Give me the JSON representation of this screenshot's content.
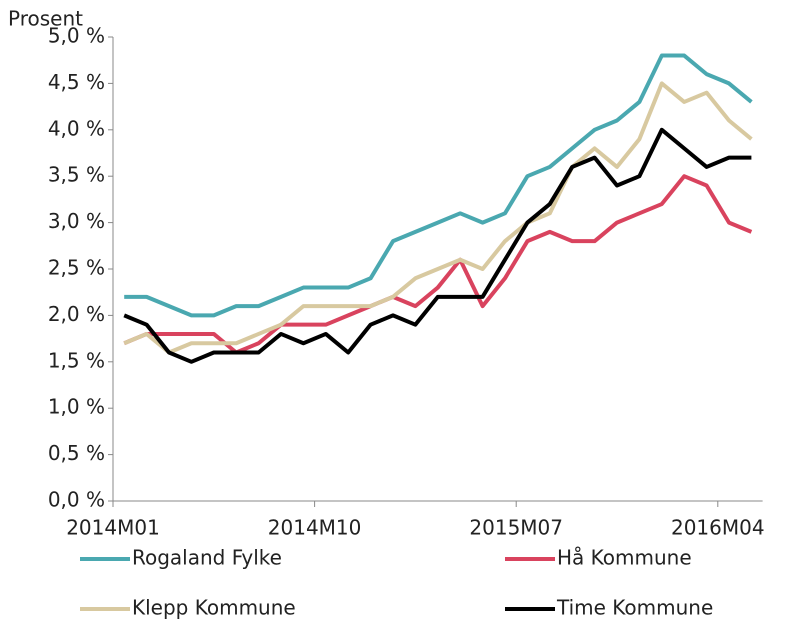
{
  "chart_data": {
    "type": "line",
    "y_axis_label": "Prosent",
    "categories": [
      "2014M01",
      null,
      null,
      null,
      null,
      null,
      null,
      null,
      null,
      "2014M10",
      null,
      null,
      null,
      null,
      null,
      null,
      null,
      null,
      "2015M07",
      null,
      null,
      null,
      null,
      null,
      null,
      null,
      null,
      "2016M04",
      null
    ],
    "series": [
      {
        "name": "Rogaland Fylke",
        "color": "#4aa8b0",
        "values": [
          2.2,
          2.2,
          2.1,
          2.0,
          2.0,
          2.1,
          2.1,
          2.2,
          2.3,
          2.3,
          2.3,
          2.4,
          2.8,
          2.9,
          3.0,
          3.1,
          3.0,
          3.1,
          3.5,
          3.6,
          3.8,
          4.0,
          4.1,
          4.3,
          4.8,
          4.8,
          4.6,
          4.5,
          4.3
        ]
      },
      {
        "name": "Hå Kommune",
        "color": "#d9435e",
        "values": [
          1.7,
          1.8,
          1.8,
          1.8,
          1.8,
          1.6,
          1.7,
          1.9,
          1.9,
          1.9,
          2.0,
          2.1,
          2.2,
          2.1,
          2.3,
          2.6,
          2.1,
          2.4,
          2.8,
          2.9,
          2.8,
          2.8,
          3.0,
          3.1,
          3.2,
          3.5,
          3.4,
          3.0,
          2.9
        ]
      },
      {
        "name": "Klepp Kommune",
        "color": "#d8c9a0",
        "values": [
          1.7,
          1.8,
          1.6,
          1.7,
          1.7,
          1.7,
          1.8,
          1.9,
          2.1,
          2.1,
          2.1,
          2.1,
          2.2,
          2.4,
          2.5,
          2.6,
          2.5,
          2.8,
          3.0,
          3.1,
          3.6,
          3.8,
          3.6,
          3.9,
          4.5,
          4.3,
          4.4,
          4.1,
          3.9
        ]
      },
      {
        "name": "Time Kommune",
        "color": "#000000",
        "values": [
          2.0,
          1.9,
          1.6,
          1.5,
          1.6,
          1.6,
          1.6,
          1.8,
          1.7,
          1.8,
          1.6,
          1.9,
          2.0,
          1.9,
          2.2,
          2.2,
          2.2,
          2.6,
          3.0,
          3.2,
          3.6,
          3.7,
          3.4,
          3.5,
          4.0,
          3.8,
          3.6,
          3.7,
          3.7
        ]
      }
    ],
    "ylim": [
      0,
      5
    ],
    "yticks": [
      {
        "value": 0,
        "label": "0,0 %"
      },
      {
        "value": 0.5,
        "label": "0,5 %"
      },
      {
        "value": 1,
        "label": "1,0 %"
      },
      {
        "value": 1.5,
        "label": "1,5 %"
      },
      {
        "value": 2,
        "label": "2,0 %"
      },
      {
        "value": 2.5,
        "label": "2,5 %"
      },
      {
        "value": 3,
        "label": "3,0 %"
      },
      {
        "value": 3.5,
        "label": "3,5 %"
      },
      {
        "value": 4,
        "label": "4,0 %"
      },
      {
        "value": 4.5,
        "label": "4,5 %"
      },
      {
        "value": 5,
        "label": "5,0 %"
      }
    ],
    "grid": false,
    "legend": "bottom"
  }
}
